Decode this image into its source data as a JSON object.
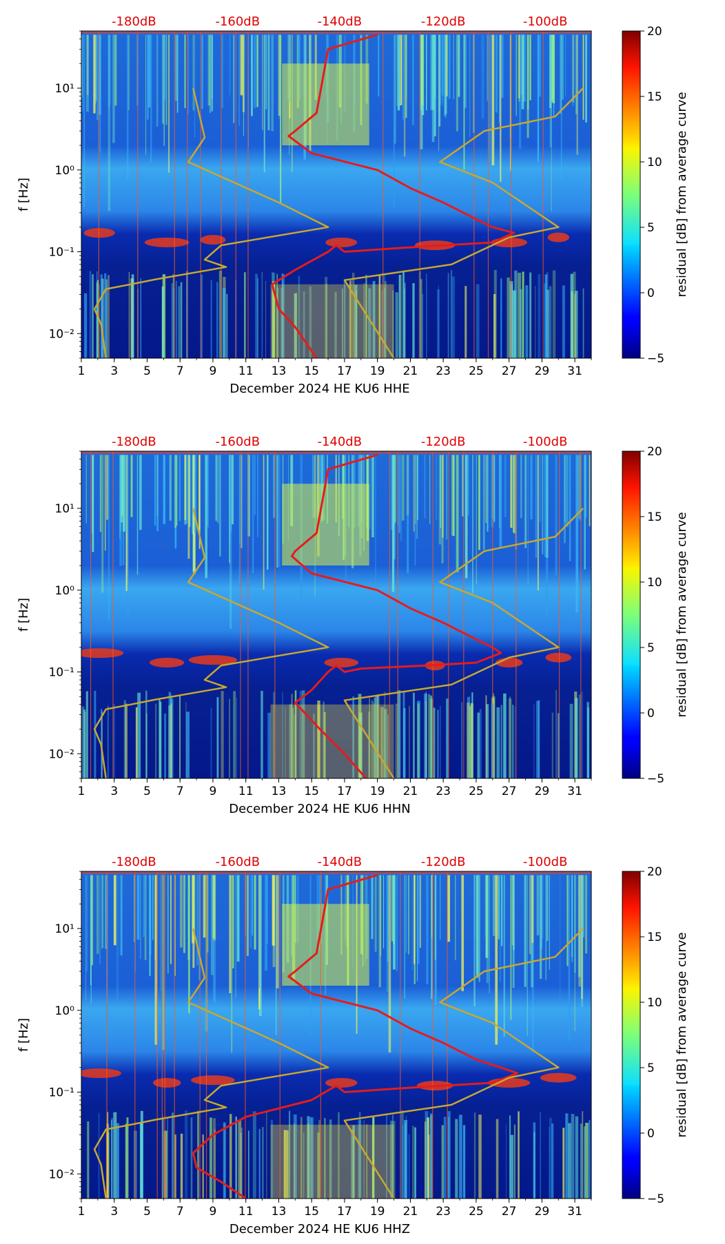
{
  "figure": {
    "panels": [
      {
        "id": "hhe",
        "title": "December 2024 HE KU6  HHE"
      },
      {
        "id": "hhn",
        "title": "December 2024 HE KU6  HHN"
      },
      {
        "id": "hhz",
        "title": "December 2024 HE KU6  HHZ"
      }
    ]
  },
  "chart_data": [
    {
      "type": "heatmap",
      "title": "December 2024 HE KU6  HHE",
      "xlabel": "December 2024 HE KU6  HHE",
      "ylabel": "f [Hz]",
      "xlim": [
        1,
        32
      ],
      "x_ticks": [
        "1",
        "3",
        "5",
        "7",
        "9",
        "11",
        "13",
        "15",
        "17",
        "19",
        "21",
        "23",
        "25",
        "27",
        "29",
        "31"
      ],
      "yscale": "log",
      "ylim": [
        0.005,
        50
      ],
      "y_ticks": [
        "10⁻²",
        "10⁻¹",
        "10⁰",
        "10¹"
      ],
      "top_axis_labels": [
        "-180dB",
        "-160dB",
        "-140dB",
        "-120dB",
        "-100dB"
      ],
      "top_axis_color": "#e00000",
      "colorbar": {
        "label": "residual [dB] from average curve",
        "min": -5,
        "max": 20,
        "ticks": [
          "−5",
          "0",
          "5",
          "10",
          "15",
          "20"
        ]
      },
      "series": [
        {
          "name": "average PSD curve",
          "color": "#e51c1c",
          "points": [
            [
              19,
              45
            ],
            [
              16,
              30
            ],
            [
              15.3,
              5
            ],
            [
              14,
              3
            ],
            [
              13.6,
              2.6
            ],
            [
              15,
              1.6
            ],
            [
              19,
              1.0
            ],
            [
              21,
              0.6
            ],
            [
              23,
              0.4
            ],
            [
              25,
              0.25
            ],
            [
              26,
              0.2
            ],
            [
              27.3,
              0.17
            ],
            [
              26,
              0.13
            ],
            [
              23,
              0.12
            ],
            [
              20,
              0.11
            ],
            [
              17,
              0.1
            ],
            [
              16.5,
              0.12
            ],
            [
              16,
              0.1
            ],
            [
              14,
              0.06
            ],
            [
              12.6,
              0.04
            ],
            [
              13,
              0.02
            ],
            [
              14,
              0.012
            ],
            [
              15.3,
              0.005
            ]
          ]
        },
        {
          "name": "noise model",
          "color": "#c8a830",
          "points": [
            [
              7.8,
              10
            ],
            [
              8.5,
              2.5
            ],
            [
              7.5,
              1.25
            ],
            [
              13,
              0.4
            ],
            [
              16,
              0.2
            ],
            [
              9.5,
              0.12
            ],
            [
              8.5,
              0.08
            ],
            [
              9.8,
              0.065
            ],
            [
              5.5,
              0.046
            ],
            [
              4,
              0.04
            ],
            [
              2.5,
              0.035
            ],
            [
              1.8,
              0.02
            ],
            [
              2.2,
              0.013
            ],
            [
              2.5,
              0.005
            ]
          ]
        },
        {
          "name": "noise model (right)",
          "color": "#c8a830",
          "points": [
            [
              31.5,
              10
            ],
            [
              29.8,
              4.5
            ],
            [
              25.5,
              3
            ],
            [
              22.8,
              1.25
            ],
            [
              26,
              0.7
            ],
            [
              30,
              0.2
            ],
            [
              27,
              0.15
            ],
            [
              23.5,
              0.07
            ],
            [
              17,
              0.045
            ],
            [
              20,
              0.005
            ]
          ]
        }
      ]
    },
    {
      "type": "heatmap",
      "title": "December 2024 HE KU6  HHN",
      "xlabel": "December 2024 HE KU6  HHN",
      "ylabel": "f [Hz]",
      "xlim": [
        1,
        32
      ],
      "x_ticks": [
        "1",
        "3",
        "5",
        "7",
        "9",
        "11",
        "13",
        "15",
        "17",
        "19",
        "21",
        "23",
        "25",
        "27",
        "29",
        "31"
      ],
      "yscale": "log",
      "ylim": [
        0.005,
        50
      ],
      "y_ticks": [
        "10⁻²",
        "10⁻¹",
        "10⁰",
        "10¹"
      ],
      "top_axis_labels": [
        "-180dB",
        "-160dB",
        "-140dB",
        "-120dB",
        "-100dB"
      ],
      "top_axis_color": "#e00000",
      "colorbar": {
        "label": "residual [dB] from average curve",
        "min": -5,
        "max": 20,
        "ticks": [
          "−5",
          "0",
          "5",
          "10",
          "15",
          "20"
        ]
      },
      "series": [
        {
          "name": "average PSD curve",
          "color": "#e51c1c",
          "points": [
            [
              19,
              45
            ],
            [
              16,
              30
            ],
            [
              15.3,
              5
            ],
            [
              14,
              3
            ],
            [
              13.8,
              2.6
            ],
            [
              15,
              1.6
            ],
            [
              19,
              1.0
            ],
            [
              21,
              0.6
            ],
            [
              23,
              0.4
            ],
            [
              25,
              0.25
            ],
            [
              26,
              0.2
            ],
            [
              26.5,
              0.17
            ],
            [
              25,
              0.13
            ],
            [
              22,
              0.12
            ],
            [
              18,
              0.11
            ],
            [
              17,
              0.1
            ],
            [
              16.5,
              0.12
            ],
            [
              16,
              0.1
            ],
            [
              15,
              0.06
            ],
            [
              14,
              0.042
            ],
            [
              15.5,
              0.02
            ],
            [
              17,
              0.01
            ],
            [
              18.3,
              0.005
            ]
          ]
        },
        {
          "name": "noise model",
          "color": "#c8a830",
          "points": [
            [
              7.8,
              10
            ],
            [
              8.5,
              2.5
            ],
            [
              7.5,
              1.25
            ],
            [
              13,
              0.4
            ],
            [
              16,
              0.2
            ],
            [
              9.5,
              0.12
            ],
            [
              8.5,
              0.08
            ],
            [
              9.8,
              0.065
            ],
            [
              5.5,
              0.046
            ],
            [
              4,
              0.04
            ],
            [
              2.5,
              0.035
            ],
            [
              1.8,
              0.02
            ],
            [
              2.2,
              0.013
            ],
            [
              2.5,
              0.005
            ]
          ]
        },
        {
          "name": "noise model (right)",
          "color": "#c8a830",
          "points": [
            [
              31.5,
              10
            ],
            [
              29.8,
              4.5
            ],
            [
              25.5,
              3
            ],
            [
              22.8,
              1.25
            ],
            [
              26,
              0.7
            ],
            [
              30,
              0.2
            ],
            [
              27,
              0.15
            ],
            [
              23.5,
              0.07
            ],
            [
              17,
              0.045
            ],
            [
              20,
              0.005
            ]
          ]
        }
      ]
    },
    {
      "type": "heatmap",
      "title": "December 2024 HE KU6  HHZ",
      "xlabel": "December 2024 HE KU6  HHZ",
      "ylabel": "f [Hz]",
      "xlim": [
        1,
        32
      ],
      "x_ticks": [
        "1",
        "3",
        "5",
        "7",
        "9",
        "11",
        "13",
        "15",
        "17",
        "19",
        "21",
        "23",
        "25",
        "27",
        "29",
        "31"
      ],
      "yscale": "log",
      "ylim": [
        0.005,
        50
      ],
      "y_ticks": [
        "10⁻²",
        "10⁻¹",
        "10⁰",
        "10¹"
      ],
      "top_axis_labels": [
        "-180dB",
        "-160dB",
        "-140dB",
        "-120dB",
        "-100dB"
      ],
      "top_axis_color": "#e00000",
      "colorbar": {
        "label": "residual [dB] from average curve",
        "min": -5,
        "max": 20,
        "ticks": [
          "−5",
          "0",
          "5",
          "10",
          "15",
          "20"
        ]
      },
      "series": [
        {
          "name": "average PSD curve",
          "color": "#e51c1c",
          "points": [
            [
              19,
              45
            ],
            [
              16,
              30
            ],
            [
              15.3,
              5
            ],
            [
              14,
              3
            ],
            [
              13.6,
              2.6
            ],
            [
              15,
              1.6
            ],
            [
              19,
              1.0
            ],
            [
              21,
              0.6
            ],
            [
              23,
              0.4
            ],
            [
              25,
              0.25
            ],
            [
              26.5,
              0.2
            ],
            [
              27.5,
              0.17
            ],
            [
              26,
              0.13
            ],
            [
              23,
              0.12
            ],
            [
              20,
              0.11
            ],
            [
              17,
              0.1
            ],
            [
              16.5,
              0.12
            ],
            [
              15,
              0.08
            ],
            [
              11,
              0.05
            ],
            [
              9,
              0.03
            ],
            [
              7.8,
              0.018
            ],
            [
              8,
              0.012
            ],
            [
              9.5,
              0.008
            ],
            [
              11,
              0.005
            ]
          ]
        },
        {
          "name": "noise model",
          "color": "#c8a830",
          "points": [
            [
              7.8,
              10
            ],
            [
              8.5,
              2.5
            ],
            [
              7.5,
              1.25
            ],
            [
              13,
              0.4
            ],
            [
              16,
              0.2
            ],
            [
              9.5,
              0.12
            ],
            [
              8.5,
              0.08
            ],
            [
              9.8,
              0.065
            ],
            [
              5.5,
              0.046
            ],
            [
              4,
              0.04
            ],
            [
              2.5,
              0.035
            ],
            [
              1.8,
              0.02
            ],
            [
              2.2,
              0.013
            ],
            [
              2.5,
              0.005
            ]
          ]
        },
        {
          "name": "noise model (right)",
          "color": "#c8a830",
          "points": [
            [
              31.5,
              10
            ],
            [
              29.8,
              4.5
            ],
            [
              25.5,
              3
            ],
            [
              22.8,
              1.25
            ],
            [
              26,
              0.7
            ],
            [
              30,
              0.2
            ],
            [
              27,
              0.15
            ],
            [
              23.5,
              0.07
            ],
            [
              17,
              0.045
            ],
            [
              20,
              0.005
            ]
          ]
        }
      ]
    }
  ]
}
